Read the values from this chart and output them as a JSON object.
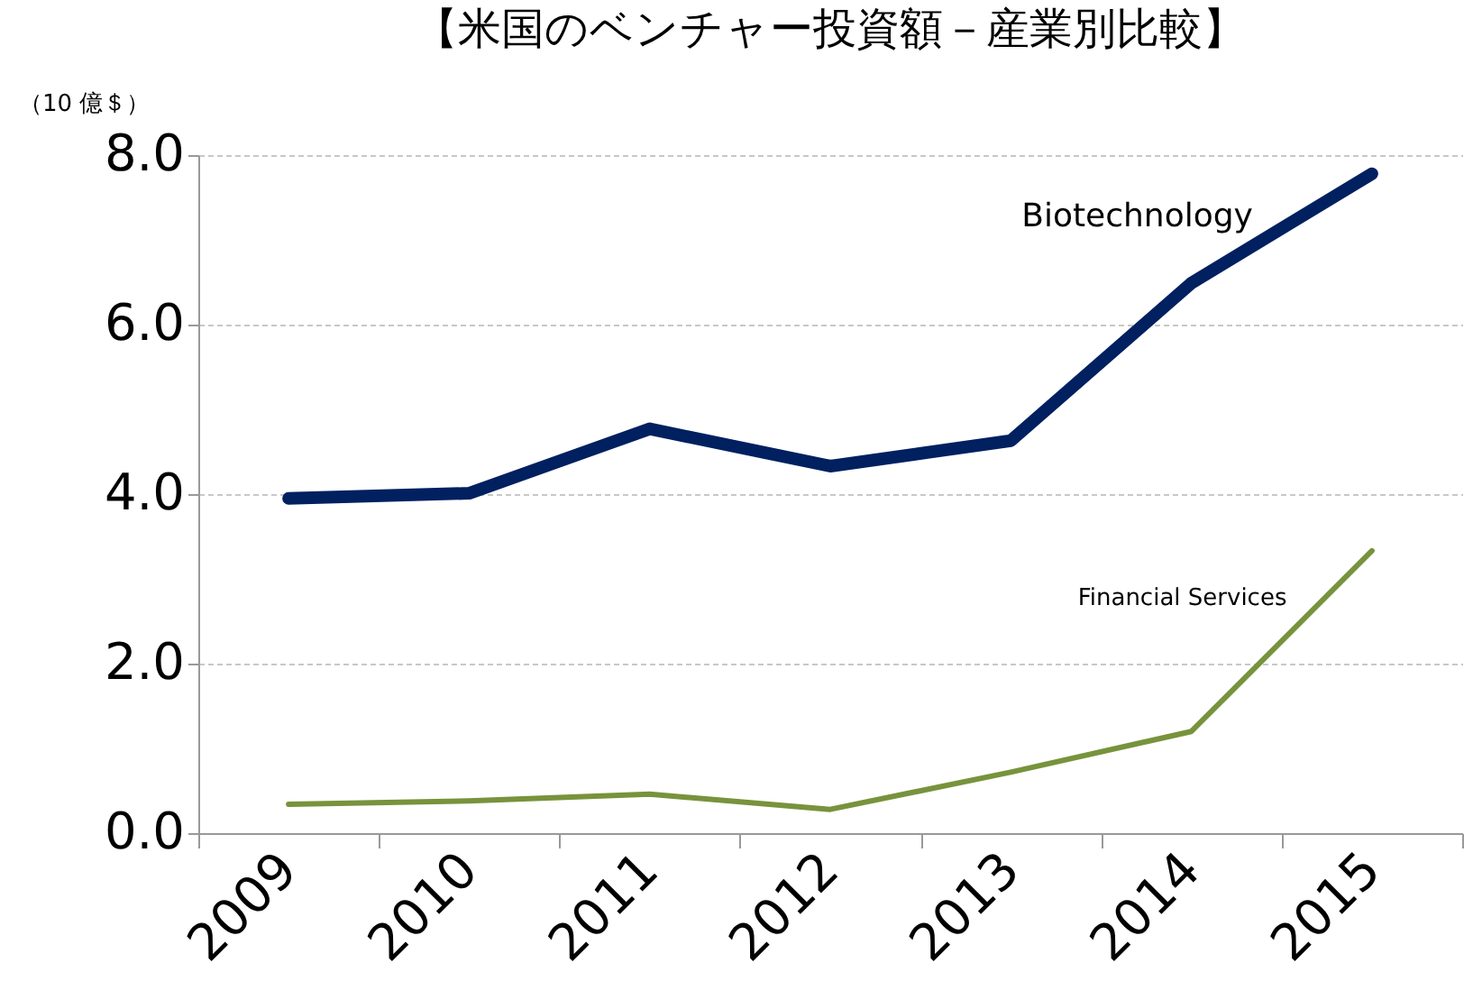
{
  "chart_data": {
    "type": "line",
    "title": "【米国のベンチャー投資額－産業別比較】",
    "ylabel": "（10 億＄）",
    "categories": [
      "2009",
      "2010",
      "2011",
      "2012",
      "2013",
      "2014",
      "2015"
    ],
    "series": [
      {
        "name": "Biotechnology",
        "color": "#002060",
        "values": [
          3.95,
          4.01,
          4.77,
          4.33,
          4.63,
          6.49,
          7.78
        ]
      },
      {
        "name": "Financial Services",
        "color": "#77933c",
        "values": [
          0.34,
          0.38,
          0.46,
          0.28,
          0.72,
          1.2,
          3.33
        ]
      }
    ],
    "ylim": [
      0,
      8
    ],
    "yticks": [
      {
        "value": 0,
        "label": "0.0"
      },
      {
        "value": 2,
        "label": "2.0"
      },
      {
        "value": 4,
        "label": "4.0"
      },
      {
        "value": 6,
        "label": "6.0"
      },
      {
        "value": 8,
        "label": "8.0"
      }
    ],
    "grid": "y",
    "legend": false,
    "marker": "none",
    "line_style": "solid"
  }
}
